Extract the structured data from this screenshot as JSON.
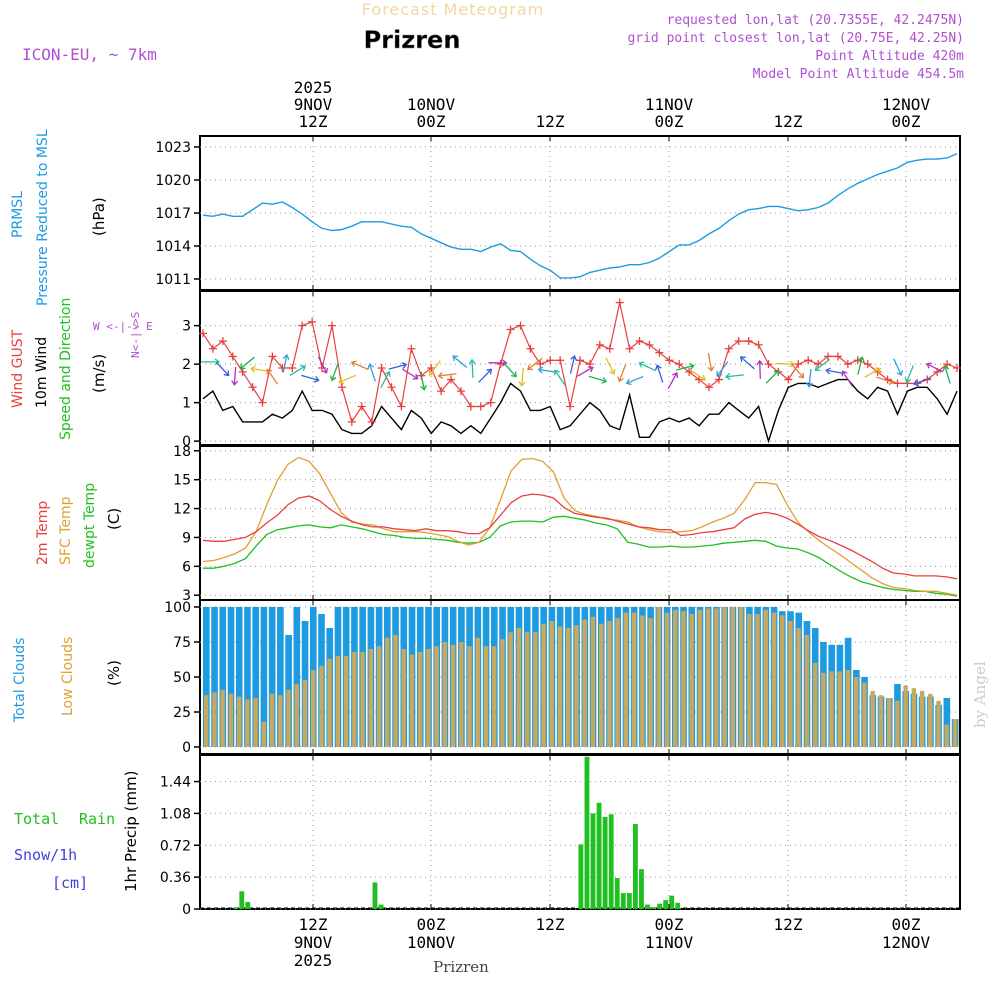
{
  "header": {
    "title": "Forecast Meteogram",
    "location": "Prizren",
    "model": "ICON-EU, ~ 7km",
    "requested": "requested lon,lat (20.7355E, 42.2475N)",
    "grid": "grid point closest lon,lat (20.75E, 42.25N)",
    "altitude": "Point Altitude 420m",
    "model_altitude": "Model Point Altitude 454.5m",
    "footer_location": "Prizren",
    "watermark": "by Angel"
  },
  "colors": {
    "pressure": "#1e9be0",
    "gust": "#e84040",
    "wind": "#000000",
    "temp2m": "#e84040",
    "sfc_temp": "#e0a030",
    "dewpt": "#20c020",
    "total_clouds": "#1e9be0",
    "low_clouds": "#c8a860",
    "rain": "#20c020",
    "snow": "#4040e0",
    "purple": "#b050d0"
  },
  "chart_data": [
    {
      "type": "line",
      "name": "pressure",
      "title": "PRMSL Pressure Reduced to MSL",
      "label1": "PRMSL",
      "label2": "Pressure Reduced to MSL",
      "ylabel": "(hPa)",
      "ylim": [
        1010,
        1024
      ],
      "yticks": [
        1011,
        1014,
        1017,
        1020,
        1023
      ],
      "x": [
        0,
        1,
        2,
        3,
        4,
        5,
        6,
        7,
        8,
        9,
        10,
        11,
        12,
        13,
        14,
        15,
        16,
        17,
        18,
        19,
        20,
        21,
        22,
        23,
        24,
        25,
        26,
        27,
        28,
        29,
        30,
        31,
        32,
        33,
        34,
        35,
        36,
        37,
        38,
        39,
        40,
        41,
        42,
        43,
        44,
        45,
        46,
        47,
        48,
        49,
        50,
        51,
        52,
        53,
        54,
        55,
        56,
        57,
        58,
        59,
        60,
        61,
        62,
        63,
        64,
        65,
        66,
        67,
        68,
        69,
        70,
        71,
        72,
        73,
        74,
        75,
        76
      ],
      "values": [
        1016.8,
        1016.7,
        1016.9,
        1016.7,
        1016.7,
        1017.3,
        1017.9,
        1017.8,
        1018.0,
        1017.5,
        1016.9,
        1016.2,
        1015.6,
        1015.4,
        1015.5,
        1015.8,
        1016.2,
        1016.2,
        1016.2,
        1016.0,
        1015.8,
        1015.7,
        1015.1,
        1014.7,
        1014.3,
        1013.9,
        1013.7,
        1013.7,
        1013.5,
        1013.9,
        1014.2,
        1013.6,
        1013.5,
        1012.8,
        1012.2,
        1011.8,
        1011.1,
        1011.1,
        1011.2,
        1011.6,
        1011.8,
        1012.0,
        1012.1,
        1012.3,
        1012.3,
        1012.5,
        1012.9,
        1013.5,
        1014.1,
        1014.1,
        1014.5,
        1015.1,
        1015.6,
        1016.3,
        1016.9,
        1017.3,
        1017.4,
        1017.6,
        1017.6,
        1017.4,
        1017.2,
        1017.3,
        1017.5,
        1017.9,
        1018.6,
        1019.2,
        1019.7,
        1020.1,
        1020.5,
        1020.8,
        1021.1,
        1021.6,
        1021.8,
        1021.9,
        1021.9,
        1022.0,
        1022.4
      ]
    },
    {
      "type": "line",
      "name": "wind",
      "label1": "Wind GUST",
      "label2": "10m Wind",
      "label3": "Speed and Direction",
      "ylabel": "(m/s)",
      "compass": "W <-|-> E",
      "compass_v": "N<-|->S",
      "ylim": [
        -0.1,
        3.9
      ],
      "yticks": [
        0,
        1,
        2,
        3
      ],
      "series": [
        {
          "name": "Wind GUST",
          "values": [
            2.8,
            2.4,
            2.6,
            2.2,
            1.8,
            1.4,
            1.0,
            2.2,
            1.9,
            1.9,
            3.0,
            3.1,
            1.9,
            3.0,
            1.4,
            0.5,
            0.9,
            0.5,
            1.9,
            1.4,
            0.9,
            2.4,
            1.7,
            1.9,
            1.3,
            1.6,
            1.3,
            0.9,
            0.9,
            1.0,
            2.0,
            2.9,
            3.0,
            2.4,
            2.0,
            2.1,
            2.1,
            0.9,
            2.1,
            2.0,
            2.5,
            2.4,
            3.6,
            2.4,
            2.6,
            2.5,
            2.3,
            2.1,
            2.0,
            1.8,
            1.6,
            1.4,
            1.6,
            2.4,
            2.6,
            2.6,
            2.5,
            2.0,
            1.8,
            1.6,
            2.0,
            2.1,
            2.0,
            2.2,
            2.2,
            2.0,
            2.1,
            2.0,
            1.8,
            1.6,
            1.5,
            1.5,
            1.5,
            1.6,
            1.8,
            2.0,
            1.9
          ]
        },
        {
          "name": "10m Wind",
          "values": [
            1.1,
            1.3,
            0.8,
            0.9,
            0.5,
            0.5,
            0.5,
            0.7,
            0.6,
            0.8,
            1.3,
            0.8,
            0.8,
            0.7,
            0.3,
            0.2,
            0.2,
            0.4,
            0.9,
            0.6,
            0.3,
            0.8,
            0.6,
            0.2,
            0.5,
            0.4,
            0.2,
            0.4,
            0.2,
            0.6,
            1.0,
            1.5,
            1.3,
            0.8,
            0.8,
            0.9,
            0.3,
            0.4,
            0.7,
            1.0,
            0.8,
            0.4,
            0.3,
            1.2,
            0.1,
            0.1,
            0.5,
            0.6,
            0.5,
            0.6,
            0.4,
            0.7,
            0.7,
            1.0,
            0.8,
            0.6,
            0.9,
            0.0,
            0.8,
            1.4,
            1.5,
            1.5,
            1.4,
            1.5,
            1.6,
            1.6,
            1.3,
            1.1,
            1.4,
            1.3,
            0.7,
            1.3,
            1.4,
            1.4,
            1.1,
            0.7,
            1.3
          ]
        }
      ]
    },
    {
      "type": "line",
      "name": "temperature",
      "label1": "2m Temp",
      "label2": "SFC Temp",
      "label3": "dewpt Temp",
      "ylabel": "(C)",
      "ylim": [
        2.5,
        18.5
      ],
      "yticks": [
        3,
        6,
        9,
        12,
        15,
        18
      ],
      "series": [
        {
          "name": "2m Temp",
          "values": [
            8.7,
            8.6,
            8.6,
            8.8,
            9.0,
            9.6,
            10.5,
            11.3,
            12.4,
            13.1,
            13.3,
            12.8,
            11.9,
            11.2,
            10.7,
            10.3,
            10.1,
            10.1,
            9.9,
            9.8,
            9.7,
            9.9,
            9.7,
            9.7,
            9.6,
            9.4,
            9.4,
            10.0,
            11.3,
            12.6,
            13.3,
            13.5,
            13.4,
            13.1,
            12.1,
            11.5,
            11.3,
            11.1,
            11.0,
            10.7,
            10.4,
            10.1,
            10.0,
            9.8,
            9.8,
            9.2,
            9.3,
            9.5,
            9.6,
            9.8,
            10.0,
            10.9,
            11.4,
            11.6,
            11.4,
            11.0,
            10.4,
            9.7,
            9.1,
            8.7,
            8.2,
            7.7,
            7.1,
            6.5,
            5.8,
            5.3,
            5.2,
            5.0,
            5.0,
            5.0,
            4.9,
            4.7
          ]
        },
        {
          "name": "SFC Temp",
          "values": [
            6.5,
            6.6,
            6.9,
            7.3,
            7.9,
            9.6,
            12.4,
            14.9,
            16.6,
            17.3,
            16.9,
            15.6,
            13.6,
            11.6,
            10.6,
            10.4,
            10.3,
            9.9,
            9.6,
            9.6,
            9.6,
            9.5,
            9.3,
            9.1,
            8.6,
            8.2,
            8.5,
            10.0,
            12.9,
            15.9,
            17.1,
            17.2,
            16.9,
            15.8,
            13.1,
            11.8,
            11.4,
            11.2,
            10.9,
            10.8,
            10.6,
            10.1,
            9.8,
            9.6,
            9.5,
            9.6,
            9.7,
            10.1,
            10.6,
            11.0,
            11.5,
            12.9,
            14.7,
            14.7,
            14.5,
            12.4,
            10.6,
            9.6,
            8.7,
            7.9,
            7.2,
            6.4,
            5.6,
            4.8,
            4.2,
            3.8,
            3.7,
            3.5,
            3.4,
            3.4,
            3.2,
            3.0
          ]
        },
        {
          "name": "dewpt Temp",
          "values": [
            5.8,
            5.8,
            6.0,
            6.3,
            6.8,
            8.1,
            9.3,
            9.8,
            10.0,
            10.2,
            10.3,
            10.1,
            10.0,
            10.3,
            10.1,
            9.9,
            9.6,
            9.3,
            9.2,
            9.0,
            8.9,
            8.9,
            8.8,
            8.7,
            8.5,
            8.4,
            8.5,
            9.0,
            10.2,
            10.6,
            10.7,
            10.7,
            10.6,
            11.1,
            11.2,
            11.0,
            10.8,
            10.5,
            10.3,
            9.9,
            8.5,
            8.3,
            8.0,
            8.0,
            8.1,
            8.0,
            8.0,
            8.1,
            8.2,
            8.4,
            8.5,
            8.6,
            8.7,
            8.6,
            8.1,
            7.9,
            7.8,
            7.4,
            6.9,
            6.2,
            5.5,
            4.9,
            4.4,
            4.1,
            3.8,
            3.6,
            3.5,
            3.4,
            3.4,
            3.2,
            3.1,
            2.9
          ]
        }
      ]
    },
    {
      "type": "bar",
      "name": "clouds",
      "label1": "Total Clouds",
      "label2": "Low Clouds",
      "ylabel": "(%)",
      "ylim": [
        -5,
        105
      ],
      "yticks": [
        0,
        25,
        50,
        75,
        100
      ],
      "series": [
        {
          "name": "Total Clouds",
          "values": [
            100,
            100,
            100,
            100,
            100,
            100,
            100,
            100,
            100,
            100,
            80,
            100,
            90,
            100,
            95,
            85,
            100,
            100,
            100,
            100,
            100,
            100,
            100,
            100,
            100,
            100,
            100,
            100,
            100,
            100,
            100,
            100,
            100,
            100,
            100,
            100,
            100,
            100,
            100,
            100,
            100,
            100,
            100,
            100,
            100,
            100,
            100,
            100,
            100,
            100,
            100,
            100,
            100,
            100,
            100,
            100,
            100,
            100,
            100,
            100,
            100,
            100,
            100,
            100,
            100,
            100,
            100,
            100,
            100,
            100,
            97,
            97,
            96,
            90,
            85,
            75,
            73,
            73,
            78,
            55,
            50,
            37,
            36,
            35,
            45,
            40,
            38,
            36,
            36,
            30,
            35,
            20
          ]
        },
        {
          "name": "Low Clouds",
          "values": [
            37,
            39,
            41,
            38,
            36,
            34,
            35,
            18,
            38,
            37,
            41,
            45,
            48,
            55,
            58,
            63,
            65,
            65,
            68,
            68,
            70,
            72,
            78,
            80,
            70,
            66,
            68,
            70,
            72,
            75,
            73,
            75,
            72,
            78,
            72,
            72,
            77,
            82,
            85,
            82,
            82,
            88,
            90,
            86,
            85,
            87,
            91,
            93,
            88,
            90,
            92,
            96,
            96,
            94,
            92,
            100,
            96,
            98,
            97,
            95,
            98,
            99,
            99,
            100,
            100,
            100,
            95,
            95,
            98,
            96,
            94,
            90,
            85,
            80,
            60,
            53,
            54,
            54,
            55,
            50,
            46,
            40,
            37,
            35,
            33,
            44,
            42,
            40,
            38,
            33,
            16,
            20
          ]
        }
      ]
    },
    {
      "type": "bar",
      "name": "precip",
      "label1": "Total",
      "label2": "Rain",
      "label3": "Snow/1h",
      "label4": "[cm]",
      "ylabel": "1hr Precip (mm)",
      "ylim": [
        0,
        1.74
      ],
      "yticks": [
        "0",
        "0.36",
        "0.72",
        "1.08",
        "1.44"
      ],
      "values": [
        0,
        0,
        0,
        0,
        0,
        0.02,
        0.2,
        0.08,
        0,
        0,
        0,
        0,
        0,
        0,
        0,
        0,
        0,
        0,
        0,
        0,
        0,
        0,
        0,
        0,
        0,
        0,
        0,
        0,
        0.3,
        0.05,
        0,
        0,
        0,
        0,
        0,
        0,
        0,
        0,
        0,
        0,
        0,
        0,
        0,
        0,
        0,
        0,
        0,
        0,
        0,
        0,
        0,
        0,
        0,
        0,
        0,
        0,
        0,
        0,
        0,
        0,
        0,
        0,
        0.73,
        1.72,
        1.08,
        1.2,
        1.04,
        1.07,
        0.35,
        0.18,
        0.18,
        0.96,
        0.45,
        0.05,
        0.02,
        0.06,
        0.1,
        0.15,
        0.07,
        0,
        0,
        0,
        0,
        0,
        0,
        0,
        0,
        0,
        0,
        0,
        0,
        0,
        0,
        0,
        0,
        0,
        0,
        0,
        0,
        0,
        0,
        0,
        0,
        0,
        0,
        0,
        0,
        0,
        0,
        0,
        0,
        0,
        0,
        0,
        0,
        0,
        0,
        0,
        0,
        0,
        0,
        0,
        0,
        0,
        0
      ]
    }
  ],
  "time_axis": {
    "top_labels": [
      {
        "row1": "2025",
        "row2": "9NOV",
        "row3": "12Z"
      },
      {
        "row1": "",
        "row2": "10NOV",
        "row3": "00Z"
      },
      {
        "row1": "",
        "row2": "",
        "row3": "12Z"
      },
      {
        "row1": "",
        "row2": "11NOV",
        "row3": "00Z"
      },
      {
        "row1": "",
        "row2": "",
        "row3": "12Z"
      },
      {
        "row1": "",
        "row2": "12NOV",
        "row3": "00Z"
      }
    ],
    "bottom_labels": [
      {
        "row1": "12Z",
        "row2": "9NOV",
        "row3": "2025"
      },
      {
        "row1": "00Z",
        "row2": "10NOV",
        "row3": ""
      },
      {
        "row1": "12Z",
        "row2": "",
        "row3": ""
      },
      {
        "row1": "00Z",
        "row2": "11NOV",
        "row3": ""
      },
      {
        "row1": "12Z",
        "row2": "",
        "row3": ""
      },
      {
        "row1": "00Z",
        "row2": "12NOV",
        "row3": ""
      }
    ]
  }
}
